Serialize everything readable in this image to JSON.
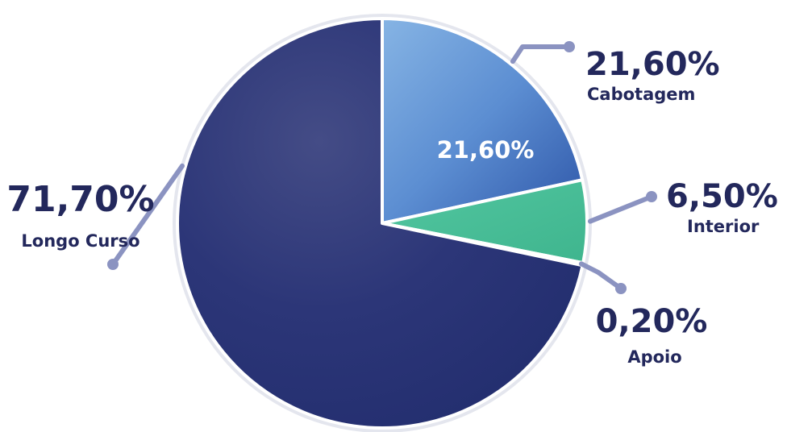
{
  "chart_data": {
    "type": "pie",
    "title": "",
    "slices": [
      {
        "name": "Cabotagem",
        "value": 21.6,
        "value_label": "21,60%",
        "inner_label": "21,60%",
        "color": "#4b79c4"
      },
      {
        "name": "Interior",
        "value": 6.5,
        "value_label": "6,50%",
        "color": "#46bd96"
      },
      {
        "name": "Apoio",
        "value": 0.2,
        "value_label": "0,20%",
        "color": "#f2c94c"
      },
      {
        "name": "Longo Curso",
        "value": 71.7,
        "value_label": "71,70%",
        "color": "#273377"
      }
    ],
    "start": "12 o'clock, clockwise",
    "legend": "none (callout labels)",
    "colors": {
      "text": "#23285c",
      "leader_line": "#8b93c1",
      "rim": "#e4e6ee"
    }
  }
}
